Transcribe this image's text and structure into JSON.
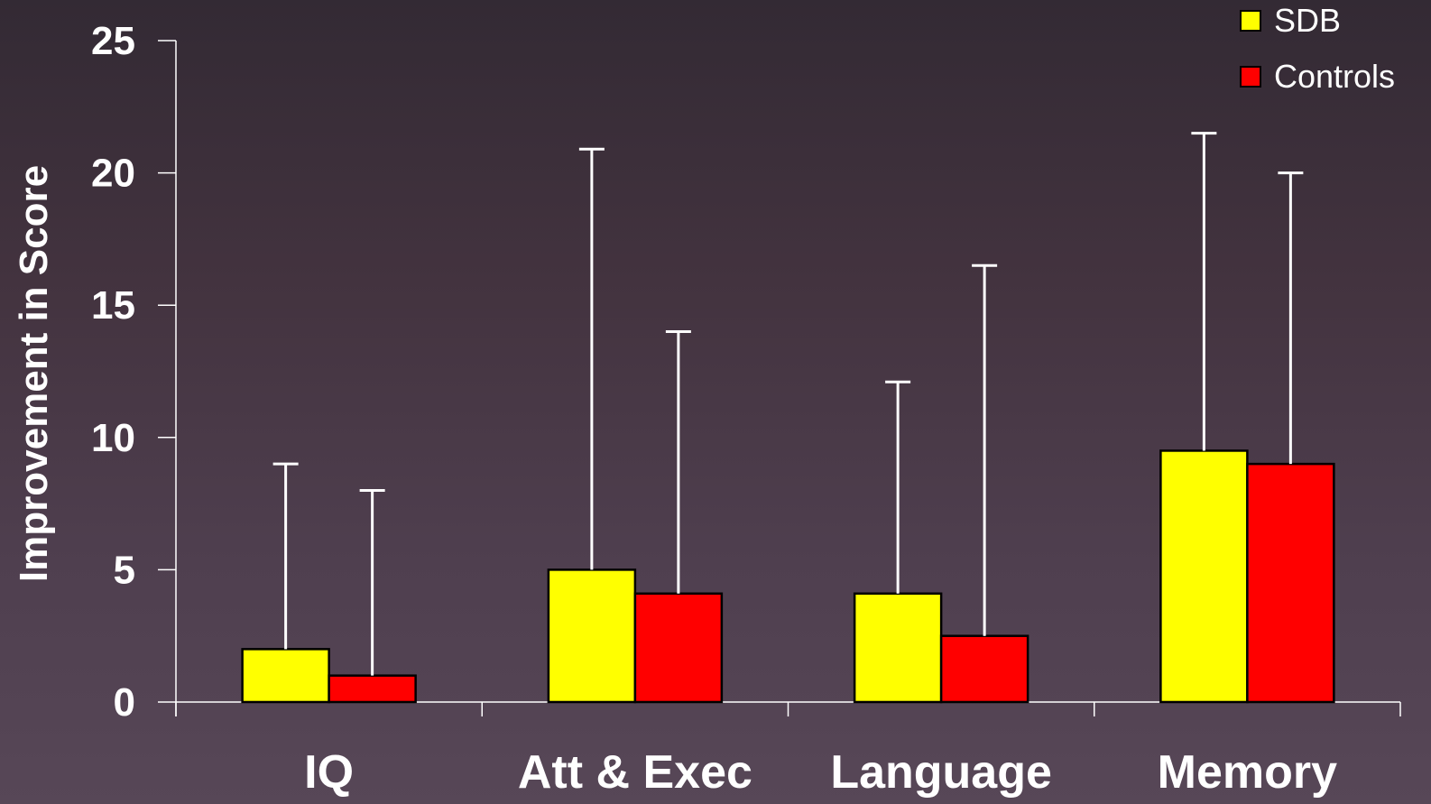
{
  "chart_data": {
    "type": "bar",
    "ylabel": "Improvement in Score",
    "ylim": [
      0,
      25
    ],
    "yticks": [
      "0",
      "5",
      "10",
      "15",
      "20",
      "25"
    ],
    "categories": [
      "IQ",
      "Att & Exec",
      "Language",
      "Memory"
    ],
    "series": [
      {
        "name": "SDB",
        "color": "#ffff00",
        "values": [
          2,
          5,
          4.1,
          9.5
        ],
        "error_upper": [
          9,
          20.9,
          12.1,
          21.5
        ]
      },
      {
        "name": "Controls",
        "color": "#ff0000",
        "values": [
          1,
          4.1,
          2.5,
          9
        ],
        "error_upper": [
          8,
          14,
          16.5,
          20
        ]
      }
    ],
    "legend_position": "top-right",
    "grid": false
  }
}
